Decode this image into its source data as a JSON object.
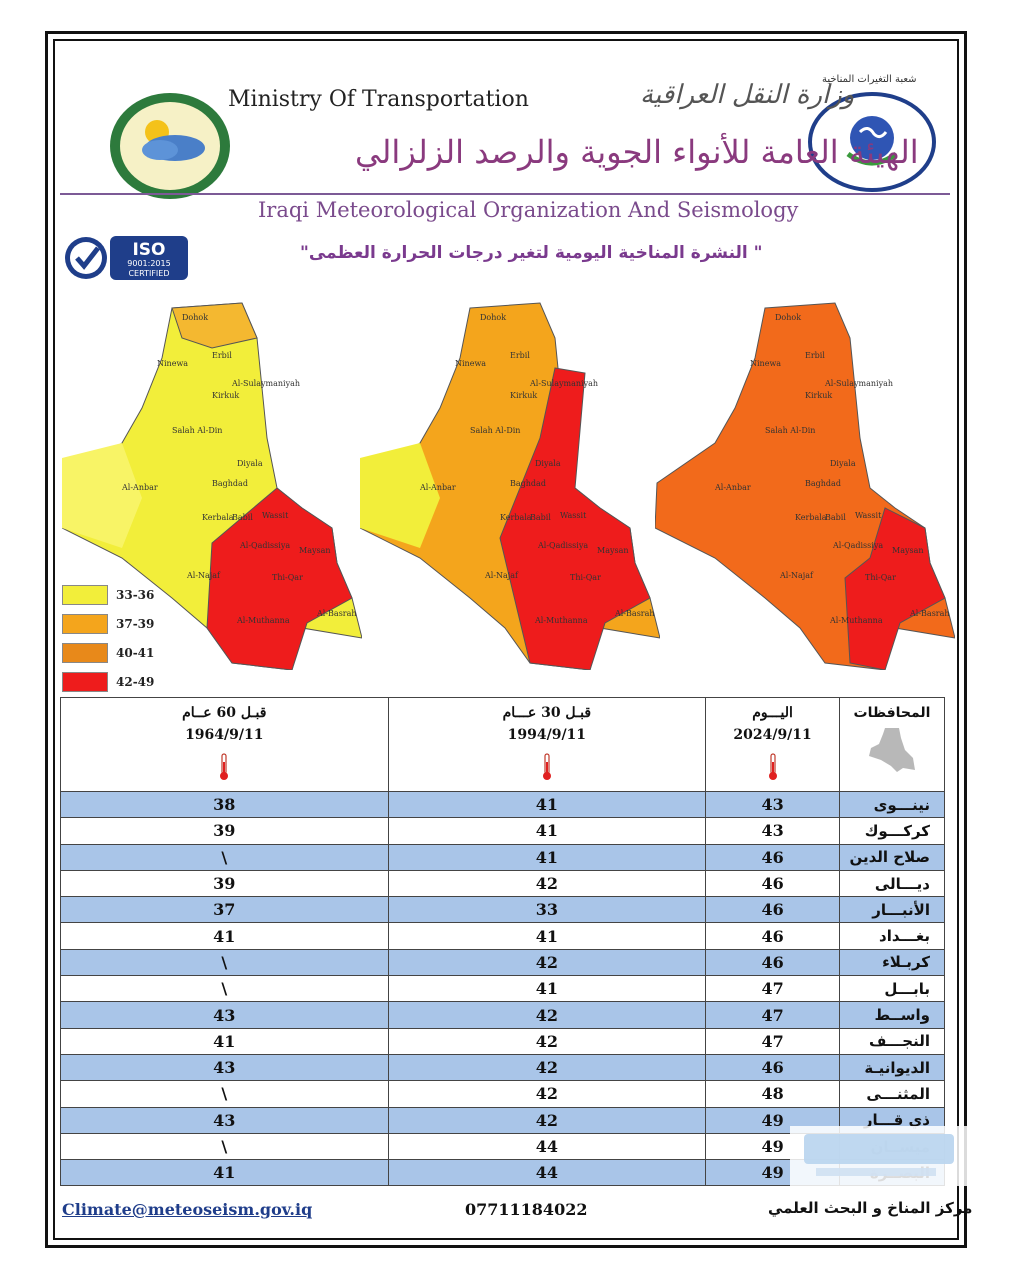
{
  "header": {
    "ministry_en": "Ministry Of Transportation",
    "ministry_ar": "وزارة النقل العراقية",
    "org_ar": "الهيئة العامة للأنواء الجوية والرصد الزلزالي",
    "org_en": "Iraqi Meteorological Organization And Seismology",
    "dept_ar": "شعبة التغيرات المناخية",
    "iso_label": "ISO",
    "iso_standard": "9001:2015",
    "iso_certified": "CERTIFIED"
  },
  "bulletin_title": "\" النشرة المناخية اليومية لتغير درجات الحرارة العظمى\"",
  "maps": {
    "province_labels": [
      "Dohok",
      "Erbil",
      "Ninewa",
      "Al-Sulaymaniyah",
      "Kirkuk",
      "Salah Al-Din",
      "Diyala",
      "Al-Anbar",
      "Baghdad",
      "Kerbala",
      "Babil",
      "Wassit",
      "Al-Qadissiya",
      "Maysan",
      "Al-Najaf",
      "Thi-Qar",
      "Al-Basrah",
      "Al-Muthanna"
    ]
  },
  "legend": [
    {
      "label": "33-36",
      "color": "#f2ee3a"
    },
    {
      "label": "37-39",
      "color": "#f4a51c"
    },
    {
      "label": "40-41",
      "color": "#e8891a"
    },
    {
      "label": "42-49",
      "color": "#ee1c1c"
    }
  ],
  "table": {
    "headers": {
      "gov": "المحافظات",
      "today": "اليـــوم",
      "today_date": "2024/9/11",
      "y30": "قبـل 30 عـــام",
      "y30_date": "1994/9/11",
      "y60": "قبـل 60 عــام",
      "y60_date": "1964/9/11"
    },
    "rows": [
      {
        "gov": "نينـــوى",
        "today": "43",
        "y30": "41",
        "y60": "38"
      },
      {
        "gov": "كركـــوك",
        "today": "43",
        "y30": "41",
        "y60": "39"
      },
      {
        "gov": "صلاح الدين",
        "today": "46",
        "y30": "41",
        "y60": "\\"
      },
      {
        "gov": "ديـــالى",
        "today": "46",
        "y30": "42",
        "y60": "39"
      },
      {
        "gov": "الأنبـــار",
        "today": "46",
        "y30": "33",
        "y60": "37"
      },
      {
        "gov": "بغـــداد",
        "today": "46",
        "y30": "41",
        "y60": "41"
      },
      {
        "gov": "كربـلاء",
        "today": "46",
        "y30": "42",
        "y60": "\\"
      },
      {
        "gov": "بابـــل",
        "today": "47",
        "y30": "41",
        "y60": "\\"
      },
      {
        "gov": "واســط",
        "today": "47",
        "y30": "42",
        "y60": "43"
      },
      {
        "gov": "النجـــف",
        "today": "47",
        "y30": "42",
        "y60": "41"
      },
      {
        "gov": "الديوانيـة",
        "today": "46",
        "y30": "42",
        "y60": "43"
      },
      {
        "gov": "المثنـــى",
        "today": "48",
        "y30": "42",
        "y60": "\\"
      },
      {
        "gov": "ذي قـــار",
        "today": "49",
        "y30": "42",
        "y60": "43"
      },
      {
        "gov": "ميســان",
        "today": "49",
        "y30": "44",
        "y60": "\\"
      },
      {
        "gov": "البصــرة",
        "today": "49",
        "y30": "44",
        "y60": "41"
      }
    ]
  },
  "footer": {
    "email": "Climate@meteoseism.gov.iq",
    "phone": "07711184022",
    "center": "مركز المناخ و البحث العلمي"
  },
  "colors": {
    "row_blue": "#a9c5e8",
    "title_purple": "#7a3a8e",
    "map_yellow": "#f2ee3a",
    "map_orange": "#f4a51c",
    "map_red": "#ee1c1c",
    "map_deep_orange": "#f26a1b"
  }
}
